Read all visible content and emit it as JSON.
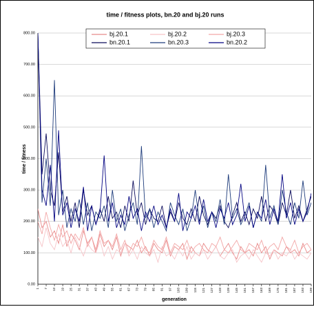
{
  "chart_data": {
    "type": "line",
    "title": "time / fitness plots, bn.20 and bj.20 runs",
    "x_label": "generation",
    "y_label": "time / fitness",
    "x": [
      1,
      4,
      7,
      10,
      13,
      16,
      19,
      22,
      25,
      28,
      31,
      34,
      37,
      40,
      43,
      46,
      49,
      52,
      55,
      58,
      61,
      64,
      67,
      70,
      73,
      76,
      79,
      82,
      85,
      88,
      91,
      94,
      97,
      100,
      103,
      106,
      109,
      112,
      115,
      118,
      121,
      124,
      127,
      130,
      133,
      136,
      139,
      142,
      145,
      148,
      151,
      154,
      157,
      160,
      163,
      166,
      169,
      172,
      175,
      178,
      181,
      184,
      187,
      190,
      193,
      196,
      199
    ],
    "xlim": [
      1,
      199
    ],
    "xticks": [
      1,
      7,
      13,
      19,
      25,
      31,
      37,
      43,
      49,
      55,
      61,
      67,
      73,
      79,
      85,
      91,
      97,
      103,
      109,
      115,
      121,
      127,
      133,
      139,
      145,
      151,
      157,
      163,
      169,
      175,
      181,
      187,
      193,
      199
    ],
    "ylim": [
      0,
      800
    ],
    "yticks": [
      {
        "value": 0,
        "label": "0.00"
      },
      {
        "value": 100,
        "label": "100.00"
      },
      {
        "value": 200,
        "label": "200.00"
      },
      {
        "value": 300,
        "label": "300.00"
      },
      {
        "value": 400,
        "label": "400.00"
      },
      {
        "value": 500,
        "label": "500.00"
      },
      {
        "value": 600,
        "label": "600.00"
      },
      {
        "value": 700,
        "label": "700.00"
      },
      {
        "value": 800,
        "label": "800.00"
      }
    ],
    "grid": true,
    "series": [
      {
        "name": "bj.20.1",
        "color": "#e88a8a",
        "values": [
          240,
          180,
          200,
          150,
          170,
          130,
          190,
          120,
          160,
          140,
          110,
          170,
          130,
          150,
          100,
          160,
          120,
          140,
          110,
          150,
          90,
          130,
          120,
          110,
          140,
          100,
          120,
          90,
          130,
          110,
          100,
          140,
          90,
          120,
          110,
          130,
          80,
          120,
          100,
          90,
          130,
          110,
          100,
          120,
          90,
          110,
          130,
          100,
          80,
          120,
          100,
          110,
          90,
          130,
          100,
          120,
          80,
          110,
          100,
          90,
          120,
          100,
          110,
          90,
          130,
          100,
          110
        ]
      },
      {
        "name": "bj.20.2",
        "color": "#f6c4c8",
        "values": [
          150,
          120,
          180,
          130,
          110,
          160,
          120,
          140,
          100,
          150,
          120,
          90,
          130,
          110,
          100,
          140,
          90,
          120,
          80,
          110,
          100,
          130,
          90,
          110,
          80,
          120,
          100,
          90,
          110,
          70,
          120,
          90,
          100,
          80,
          110,
          90,
          120,
          80,
          100,
          90,
          110,
          80,
          100,
          120,
          90,
          80,
          100,
          110,
          70,
          90,
          100,
          80,
          110,
          90,
          70,
          100,
          90,
          110,
          80,
          100,
          90,
          110,
          80,
          100,
          90,
          80,
          100
        ]
      },
      {
        "name": "bj.20.3",
        "color": "#f2a6a6",
        "values": [
          200,
          160,
          230,
          180,
          140,
          190,
          150,
          170,
          130,
          160,
          140,
          180,
          120,
          150,
          110,
          170,
          130,
          140,
          120,
          160,
          110,
          140,
          100,
          130,
          120,
          150,
          110,
          100,
          140,
          120,
          110,
          150,
          100,
          130,
          120,
          110,
          140,
          100,
          120,
          130,
          110,
          100,
          130,
          120,
          150,
          110,
          100,
          120,
          140,
          110,
          100,
          130,
          120,
          110,
          140,
          100,
          120,
          130,
          110,
          150,
          120,
          110,
          140,
          100,
          120,
          130,
          110
        ]
      },
      {
        "name": "bn.20.1",
        "color": "#0a0a5a",
        "values": [
          800,
          350,
          480,
          300,
          250,
          420,
          230,
          280,
          200,
          260,
          180,
          300,
          220,
          250,
          190,
          240,
          200,
          280,
          210,
          230,
          180,
          250,
          200,
          330,
          220,
          260,
          190,
          240,
          210,
          200,
          250,
          180,
          230,
          200,
          260,
          210,
          190,
          240,
          200,
          280,
          220,
          190,
          230,
          210,
          250,
          200,
          180,
          220,
          260,
          200,
          230,
          190,
          240,
          210,
          280,
          200,
          250,
          230,
          190,
          260,
          220,
          300,
          210,
          250,
          200,
          240,
          280
        ]
      },
      {
        "name": "bn.20.3",
        "color": "#1c3a7a",
        "values": [
          800,
          260,
          400,
          250,
          650,
          220,
          300,
          180,
          240,
          200,
          270,
          190,
          260,
          170,
          230,
          210,
          250,
          180,
          300,
          200,
          240,
          170,
          220,
          260,
          190,
          440,
          210,
          240,
          180,
          230,
          200,
          170,
          260,
          220,
          190,
          240,
          170,
          210,
          300,
          200,
          250,
          180,
          230,
          200,
          270,
          190,
          350,
          210,
          240,
          190,
          220,
          260,
          180,
          230,
          200,
          380,
          210,
          250,
          190,
          300,
          230,
          190,
          260,
          210,
          330,
          220,
          260
        ]
      },
      {
        "name": "bn.20.2",
        "color": "#000080",
        "values": [
          800,
          300,
          250,
          380,
          200,
          490,
          220,
          260,
          180,
          240,
          200,
          310,
          170,
          250,
          190,
          230,
          410,
          200,
          260,
          180,
          220,
          190,
          280,
          210,
          240,
          170,
          230,
          200,
          250,
          190,
          220,
          180,
          240,
          200,
          290,
          170,
          230,
          210,
          250,
          190,
          270,
          200,
          230,
          180,
          240,
          210,
          260,
          190,
          220,
          320,
          200,
          250,
          180,
          230,
          210,
          270,
          190,
          240,
          200,
          350,
          210,
          260,
          190,
          240,
          200,
          230,
          290
        ]
      }
    ]
  }
}
